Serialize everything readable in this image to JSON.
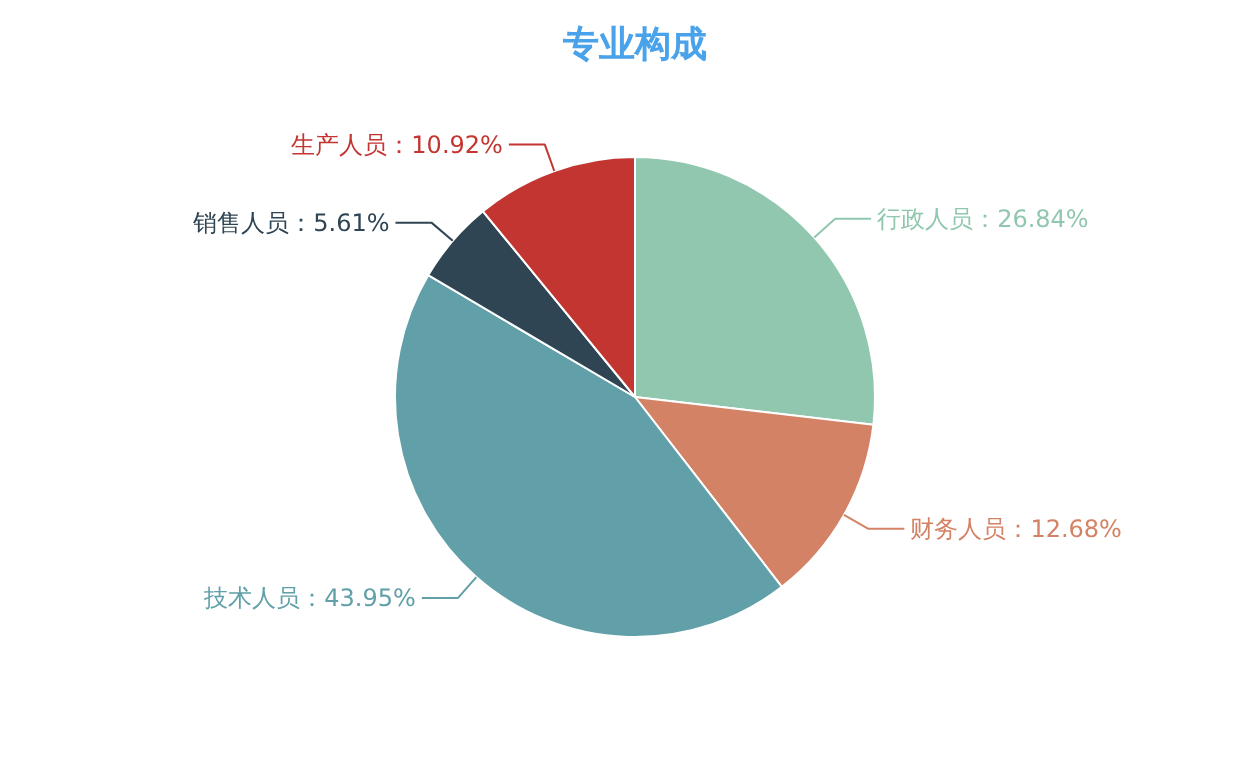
{
  "chart_data": {
    "type": "pie",
    "title": "专业构成",
    "categories": [
      "行政人员",
      "财务人员",
      "技术人员",
      "销售人员",
      "生产人员"
    ],
    "values": [
      26.84,
      12.68,
      43.95,
      5.61,
      10.92
    ],
    "value_labels": [
      "26.84%",
      "12.68%",
      "43.95%",
      "5.61%",
      "10.92%"
    ],
    "colors": [
      "#91c7ae",
      "#d48265",
      "#61a0a8",
      "#2f4554",
      "#c23531"
    ],
    "data_labels": true
  }
}
